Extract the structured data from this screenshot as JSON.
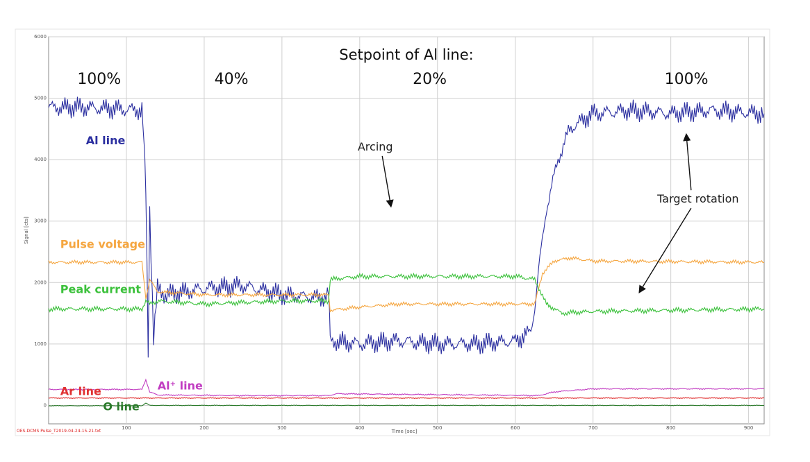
{
  "chart_data": {
    "type": "line",
    "title": "Setpoint of Al line:",
    "xlabel": "Time [sec]",
    "ylabel": "Signal [cts]",
    "xlim": [
      0,
      920
    ],
    "ylim": [
      -300,
      6000
    ],
    "xticks": [
      100,
      200,
      300,
      400,
      500,
      600,
      700,
      800,
      900
    ],
    "yticks": [
      0,
      1000,
      2000,
      3000,
      4000,
      5000,
      6000
    ],
    "grid": true,
    "footer_note": "OES-DCMS Pulse_T2019-04-24-15-21.txt",
    "phases": [
      {
        "label": "100%",
        "x": 65
      },
      {
        "label": "40%",
        "x": 235
      },
      {
        "label": "20%",
        "x": 490
      },
      {
        "label": "100%",
        "x": 820
      }
    ],
    "annotations": [
      {
        "label": "Arcing",
        "x": 420,
        "y": 4150,
        "arrow_to": [
          440,
          3250
        ]
      },
      {
        "label": "Target rotation",
        "x": 835,
        "y": 3300,
        "arrows_to": [
          [
            820,
            4400
          ],
          [
            760,
            1850
          ]
        ]
      }
    ],
    "series": [
      {
        "name": "Al line",
        "color": "#2b2fa0",
        "points": [
          [
            0,
            4850
          ],
          [
            50,
            4850
          ],
          [
            120,
            4800
          ],
          [
            122,
            4400
          ],
          [
            125,
            3500
          ],
          [
            128,
            900
          ],
          [
            130,
            3200
          ],
          [
            135,
            1100
          ],
          [
            140,
            1900
          ],
          [
            150,
            1800
          ],
          [
            200,
            1900
          ],
          [
            250,
            1950
          ],
          [
            300,
            1800
          ],
          [
            350,
            1750
          ],
          [
            360,
            1800
          ],
          [
            362,
            1050
          ],
          [
            400,
            1000
          ],
          [
            450,
            1050
          ],
          [
            500,
            1000
          ],
          [
            550,
            1000
          ],
          [
            600,
            1050
          ],
          [
            620,
            1200
          ],
          [
            625,
            1600
          ],
          [
            630,
            2200
          ],
          [
            640,
            3200
          ],
          [
            655,
            4000
          ],
          [
            670,
            4500
          ],
          [
            700,
            4750
          ],
          [
            750,
            4800
          ],
          [
            800,
            4750
          ],
          [
            850,
            4800
          ],
          [
            920,
            4750
          ]
        ]
      },
      {
        "name": "Pulse voltage",
        "color": "#f5a640",
        "points": [
          [
            0,
            2330
          ],
          [
            120,
            2330
          ],
          [
            125,
            1750
          ],
          [
            130,
            2050
          ],
          [
            140,
            1850
          ],
          [
            200,
            1800
          ],
          [
            300,
            1800
          ],
          [
            360,
            1800
          ],
          [
            362,
            1550
          ],
          [
            400,
            1600
          ],
          [
            450,
            1650
          ],
          [
            500,
            1650
          ],
          [
            550,
            1650
          ],
          [
            600,
            1650
          ],
          [
            625,
            1650
          ],
          [
            635,
            2150
          ],
          [
            650,
            2350
          ],
          [
            670,
            2400
          ],
          [
            700,
            2350
          ],
          [
            920,
            2330
          ]
        ]
      },
      {
        "name": "Peak current",
        "color": "#3cc13c",
        "points": [
          [
            0,
            1570
          ],
          [
            120,
            1570
          ],
          [
            125,
            1700
          ],
          [
            130,
            1650
          ],
          [
            140,
            1700
          ],
          [
            200,
            1650
          ],
          [
            300,
            1700
          ],
          [
            360,
            1700
          ],
          [
            362,
            2050
          ],
          [
            400,
            2100
          ],
          [
            450,
            2100
          ],
          [
            500,
            2100
          ],
          [
            550,
            2100
          ],
          [
            600,
            2100
          ],
          [
            625,
            2050
          ],
          [
            640,
            1650
          ],
          [
            660,
            1500
          ],
          [
            700,
            1530
          ],
          [
            920,
            1570
          ]
        ]
      },
      {
        "name": "Ar line",
        "color": "#e03030",
        "points": [
          [
            0,
            120
          ],
          [
            920,
            120
          ]
        ]
      },
      {
        "name": "Al⁺ line",
        "color": "#c13cc1",
        "points": [
          [
            0,
            260
          ],
          [
            120,
            260
          ],
          [
            125,
            420
          ],
          [
            130,
            220
          ],
          [
            140,
            170
          ],
          [
            250,
            160
          ],
          [
            360,
            160
          ],
          [
            370,
            190
          ],
          [
            450,
            180
          ],
          [
            550,
            170
          ],
          [
            630,
            160
          ],
          [
            650,
            220
          ],
          [
            700,
            270
          ],
          [
            920,
            270
          ]
        ]
      },
      {
        "name": "O line",
        "color": "#2a7a2a",
        "points": [
          [
            0,
            -5
          ],
          [
            120,
            -5
          ],
          [
            125,
            40
          ],
          [
            130,
            0
          ],
          [
            920,
            0
          ]
        ]
      }
    ]
  }
}
